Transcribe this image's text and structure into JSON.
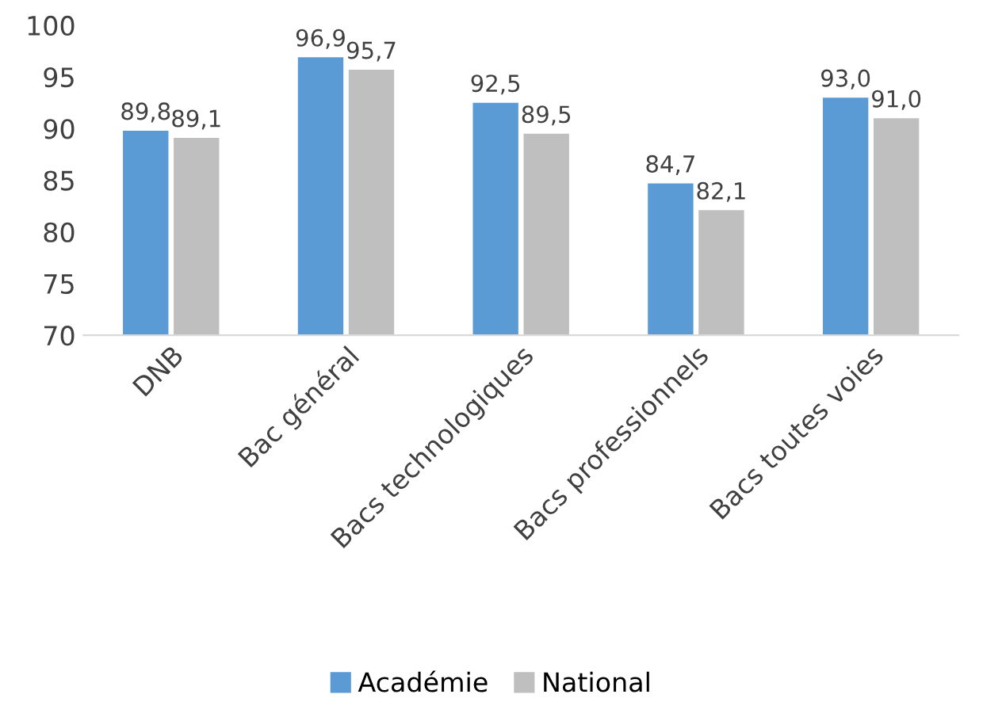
{
  "chart_data": {
    "type": "bar",
    "categories": [
      "DNB",
      "Bac général",
      "Bacs technologiques",
      "Bacs professionnels",
      "Bacs toutes voies"
    ],
    "series": [
      {
        "name": "Académie",
        "color": "#5b9bd5",
        "values": [
          89.8,
          96.9,
          92.5,
          84.7,
          93.0
        ],
        "value_labels": [
          "89,8",
          "96,9",
          "92,5",
          "84,7",
          "93,0"
        ]
      },
      {
        "name": "National",
        "color": "#bfbfbf",
        "values": [
          89.1,
          95.7,
          89.5,
          82.1,
          91.0
        ],
        "value_labels": [
          "89,1",
          "95,7",
          "89,5",
          "82,1",
          "91,0"
        ]
      }
    ],
    "ylim": [
      70,
      100
    ],
    "yticks": [
      70,
      75,
      80,
      85,
      90,
      95,
      100
    ],
    "grid": false,
    "legend": "bottom"
  }
}
